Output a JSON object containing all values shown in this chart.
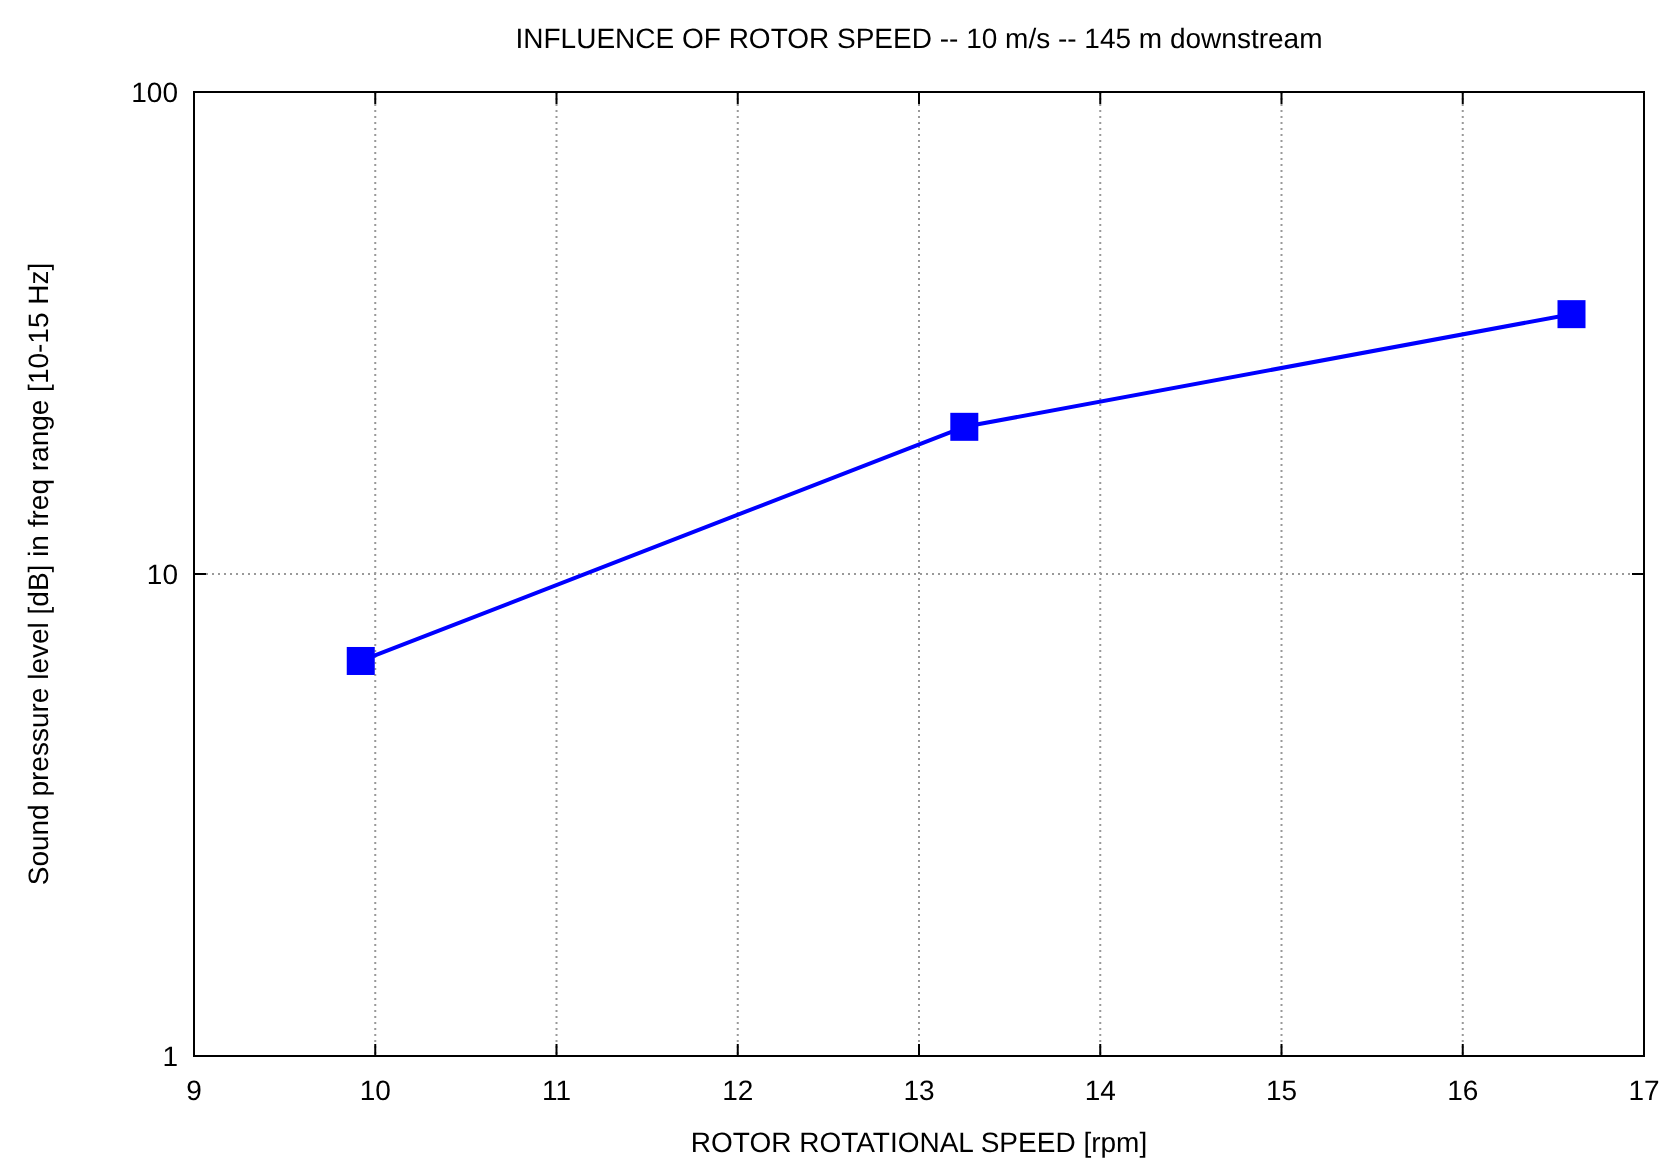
{
  "chart_data": {
    "type": "line",
    "title": "INFLUENCE OF ROTOR SPEED -- 10 m/s -- 145 m downstream",
    "xlabel": "ROTOR ROTATIONAL SPEED [rpm]",
    "ylabel": "Sound pressure level [dB] in freq range [10-15 Hz]",
    "x": [
      9.92,
      13.25,
      16.6
    ],
    "series": [
      {
        "color": "#0000ff",
        "values": [
          6.6,
          20.2,
          34.6
        ]
      }
    ],
    "xlim": [
      9,
      17
    ],
    "xticks": [
      9,
      10,
      11,
      12,
      13,
      14,
      15,
      16,
      17
    ],
    "ylim": [
      1,
      100
    ],
    "yticks": [
      1,
      10,
      100
    ],
    "log": "y",
    "grid": true,
    "marker": "square",
    "line_style": "solid"
  }
}
